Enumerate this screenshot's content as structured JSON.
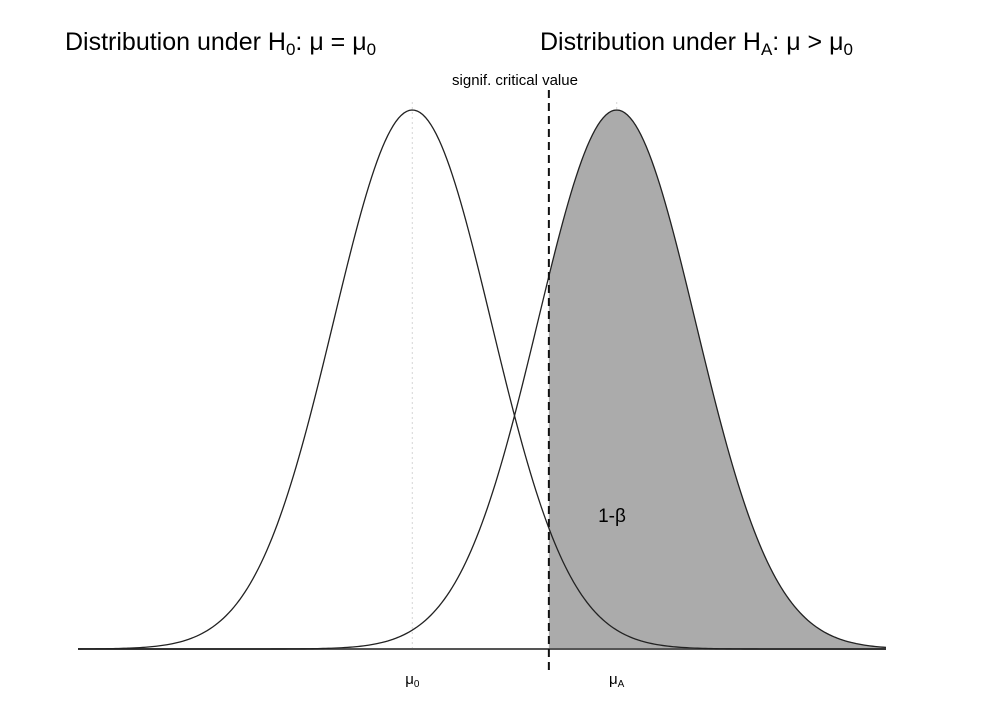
{
  "figure": {
    "title_h0": {
      "prefix": "Distribution under ",
      "hyp": "H",
      "hyp_sub": "0",
      "sep": ": ",
      "mu": "μ",
      "rel": " = ",
      "mu2": "μ",
      "mu2_sub": "0"
    },
    "title_ha": {
      "prefix": "Distribution under ",
      "hyp": "H",
      "hyp_sub": "A",
      "sep": ": ",
      "mu": "μ",
      "rel": " > ",
      "mu2": "μ",
      "mu2_sub": "0"
    },
    "critical_label": "signif. critical value",
    "power_label": "1-β",
    "tick_mu0": {
      "sym": "μ",
      "sub": "0"
    },
    "tick_muA": {
      "sym": "μ",
      "sub": "A"
    }
  },
  "chart_data": {
    "type": "area",
    "title": "",
    "xlabel": "",
    "ylabel": "",
    "xlim": [
      -3.6,
      5.1
    ],
    "ylim": [
      0,
      1
    ],
    "grid": false,
    "legend": "none",
    "series": [
      {
        "mean": 0,
        "sd": 0.85,
        "peak": 1,
        "filled": false
      },
      {
        "mean": 2.2,
        "sd": 0.85,
        "peak": 1,
        "filled_from": 1.47
      }
    ],
    "critical_value": 1.47,
    "fill_color": "#ababab",
    "line_color": "#222222",
    "axis_color": "#555555",
    "guide_color": "#dddddd"
  }
}
